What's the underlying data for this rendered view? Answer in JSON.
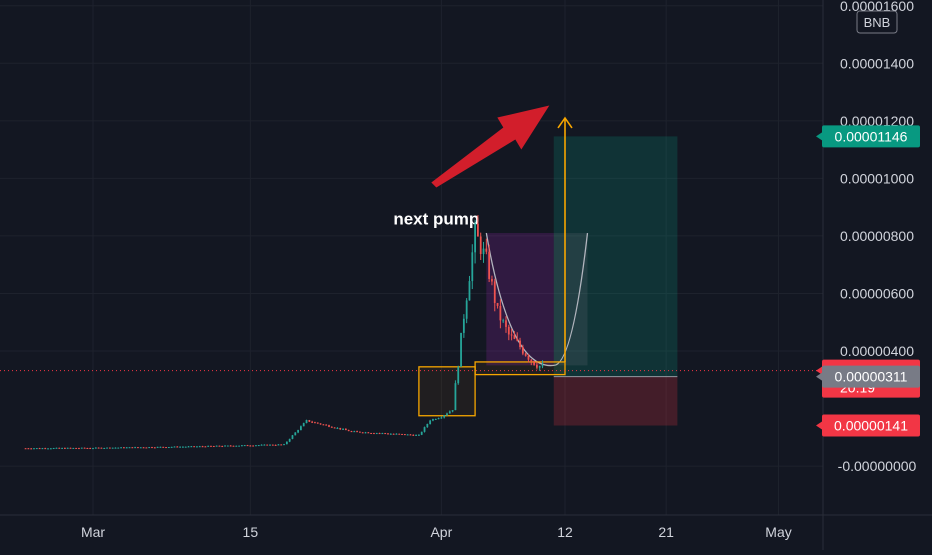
{
  "chart_data": {
    "type": "candlestick",
    "currency": "BNB",
    "x_ticks": [
      {
        "label": "Mar",
        "date": "2021-03-01"
      },
      {
        "label": "15",
        "date": "2021-03-15"
      },
      {
        "label": "Apr",
        "date": "2021-04-01"
      },
      {
        "label": "12",
        "date": "2021-04-12"
      },
      {
        "label": "21",
        "date": "2021-04-21"
      },
      {
        "label": "May",
        "date": "2021-05-01"
      }
    ],
    "y_ticks": [
      "0.00001600",
      "0.00001400",
      "0.00001200",
      "0.00001000",
      "0.00000800",
      "0.00000600",
      "0.00000400",
      "-0.00000000"
    ],
    "y_tick_values": [
      1.6e-05,
      1.4e-05,
      1.2e-05,
      1e-05,
      8e-06,
      6e-06,
      4e-06,
      0
    ],
    "ylim": [
      -1.7e-06,
      1.62e-05
    ],
    "price_series": {
      "x": [
        "2021-02-23",
        "2021-03-01",
        "2021-03-10",
        "2021-03-18",
        "2021-03-20",
        "2021-03-24",
        "2021-03-30",
        "2021-03-31",
        "2021-04-01",
        "2021-04-02",
        "2021-04-03",
        "2021-04-04",
        "2021-04-05",
        "2021-04-06",
        "2021-04-07",
        "2021-04-08",
        "2021-04-09",
        "2021-04-10"
      ],
      "y": [
        6.2e-07,
        6.3e-07,
        6.8e-07,
        7.5e-07,
        1.58e-06,
        1.2e-06,
        1.07e-06,
        1.6e-06,
        1.72e-06,
        1.97e-06,
        5.25e-06,
        8.1e-06,
        7.15e-06,
        5.35e-06,
        4.55e-06,
        4.15e-06,
        3.7e-06,
        3.4e-06
      ]
    },
    "price_labels": [
      {
        "text": "0.00001146",
        "value": 1.146e-05,
        "color": "#089981"
      },
      {
        "text": "0.00000332",
        "value": 3.32e-06,
        "color": "#f23645",
        "sub": "20:19"
      },
      {
        "text": "0.00000311",
        "value": 3.11e-06,
        "color": "#787b86"
      },
      {
        "text": "0.00000141",
        "value": 1.41e-06,
        "color": "#f23645"
      }
    ],
    "current_price": 3.32e-06,
    "position": {
      "type": "long",
      "start": "2021-04-11",
      "end": "2021-04-22",
      "entry": 3.11e-06,
      "target": 1.146e-05,
      "stop": 1.41e-06
    },
    "annotations": [
      {
        "text": "next pump",
        "x": "2021-04-05",
        "y": 8.5e-06
      }
    ],
    "drawings": {
      "rect1": {
        "x0": "2021-03-30",
        "x1": "2021-04-04",
        "y0": 1.75e-06,
        "y1": 3.45e-06
      },
      "rect2": {
        "x0": "2021-04-04",
        "x1": "2021-04-12",
        "y0": 3.18e-06,
        "y1": 3.62e-06
      },
      "trend_arrow": {
        "x": "2021-04-12",
        "y0": 3.62e-06,
        "y1": 1.21e-05
      },
      "curve": {
        "from": [
          "2021-04-05",
          8.1e-06
        ],
        "via": [
          "2021-04-11",
          3.5e-06
        ],
        "to": [
          "2021-04-14",
          8.1e-06
        ]
      },
      "fan_box": {
        "x0": "2021-04-05",
        "x1": "2021-04-11",
        "y0": 3.5e-06,
        "y1": 8.1e-06
      }
    }
  }
}
